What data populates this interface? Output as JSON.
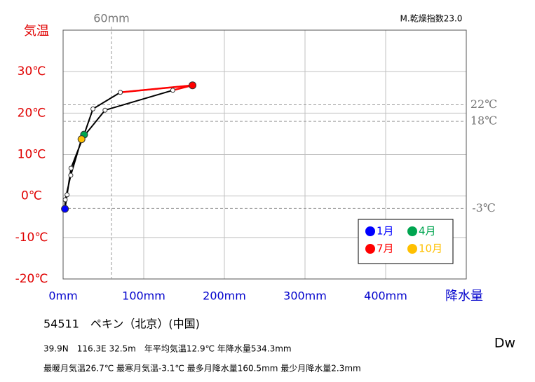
{
  "chart_data": {
    "type": "climograph",
    "y_label": "気温",
    "x_label": "降水量",
    "aridity": "M.乾燥指数23.0",
    "climate": "Dw",
    "station": "54511　ペキン（北京）(中国)",
    "info_lines": [
      "39.9N　116.3E 32.5m　年平均気温12.9℃ 年降水量534.3mm",
      "最暖月気温26.7℃ 最寒月気温-3.1℃ 最多月降水量160.5mm 最少月降水量2.3mm"
    ],
    "x": [
      2.3,
      4.9,
      9.8,
      26,
      37,
      71,
      160.5,
      136,
      52,
      22.8,
      9.5,
      2.6
    ],
    "values": [
      -3.1,
      0.3,
      6.7,
      14.8,
      21,
      25,
      26.7,
      25.5,
      20.7,
      13.7,
      5,
      -0.9
    ],
    "line_color": "#000000",
    "peak_line_color": "#ff0000",
    "legend": [
      {
        "name": "1月",
        "color": "#0000ff",
        "month": 1
      },
      {
        "name": "4月",
        "color": "#00a550",
        "month": 4
      },
      {
        "name": "7月",
        "color": "#ff0000",
        "month": 7
      },
      {
        "name": "10月",
        "color": "#ffc000",
        "month": 10
      }
    ],
    "xlim": [
      0,
      500
    ],
    "ylim": [
      -20,
      40
    ],
    "xticks": [
      {
        "value": 0,
        "label": "0mm"
      },
      {
        "value": 100,
        "label": "100mm"
      },
      {
        "value": 200,
        "label": "200mm"
      },
      {
        "value": 300,
        "label": "300mm"
      },
      {
        "value": 400,
        "label": "400mm"
      }
    ],
    "yticks": [
      {
        "value": -20,
        "label": "-20℃"
      },
      {
        "value": -10,
        "label": "-10℃"
      },
      {
        "value": 0,
        "label": "0℃"
      },
      {
        "value": 10,
        "label": "10℃"
      },
      {
        "value": 20,
        "label": "20℃"
      },
      {
        "value": 30,
        "label": "30℃"
      }
    ],
    "xtick_color": "#0000cc",
    "ytick_color": "#e00000",
    "grid": true,
    "ref_x": [
      {
        "value": 60,
        "label": "60mm"
      }
    ],
    "ref_y": [
      {
        "value": 22,
        "label": "22℃"
      },
      {
        "value": 18,
        "label": "18℃"
      },
      {
        "value": -3,
        "label": "-3℃"
      }
    ]
  }
}
